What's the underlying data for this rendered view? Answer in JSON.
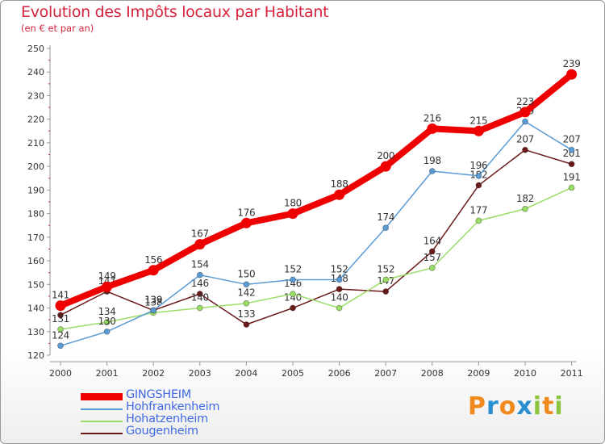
{
  "title": "Evolution des Impôts locaux par Habitant",
  "subtitle": "(en € et par an)",
  "brand": {
    "letters": [
      "P",
      "r",
      "o",
      "x",
      "i",
      "t",
      "i"
    ],
    "colors": [
      "#f08a1c",
      "#2a8fd0",
      "#f08a1c",
      "#2a8fd0",
      "#8cc63f",
      "#f08a1c",
      "#8cc63f"
    ]
  },
  "chart_data": {
    "type": "line",
    "title": "Evolution des Impôts locaux par Habitant",
    "subtitle": "(en € et par an)",
    "xlabel": "",
    "ylabel": "",
    "categories": [
      "2000",
      "2001",
      "2002",
      "2003",
      "2004",
      "2005",
      "2006",
      "2007",
      "2008",
      "2009",
      "2010",
      "2011"
    ],
    "yticks": [
      120,
      130,
      140,
      150,
      160,
      170,
      180,
      190,
      200,
      210,
      220,
      230,
      240,
      250
    ],
    "ylim": [
      120,
      250
    ],
    "grid": false,
    "legend_position": "bottom-left",
    "series": [
      {
        "name": "Gougenheim",
        "color": "#6b1a1a",
        "values": [
          137,
          147,
          139,
          146,
          133,
          140,
          148,
          147,
          164,
          192,
          207,
          201
        ],
        "labels": [
          "",
          "147",
          "139",
          "146",
          "133",
          "140",
          "148",
          "147",
          "164",
          "192",
          "207",
          "201"
        ]
      },
      {
        "name": "Hohatzenheim",
        "color": "#99dd66",
        "values": [
          131,
          134,
          138,
          140,
          142,
          146,
          140,
          152,
          157,
          177,
          182,
          191
        ],
        "labels": [
          "131",
          "134",
          "138",
          "140",
          "142",
          "146",
          "140",
          "152",
          "157",
          "177",
          "182",
          "191"
        ]
      },
      {
        "name": "Hohfrankenheim",
        "color": "#5b9bd5",
        "values": [
          124,
          130,
          139,
          154,
          150,
          152,
          152,
          174,
          198,
          196,
          219,
          207
        ],
        "labels": [
          "124",
          "130",
          "139",
          "154",
          "150",
          "152",
          "152",
          "174",
          "198",
          "196",
          "219",
          "207"
        ]
      },
      {
        "name": "GINGSHEIM",
        "color": "#ee0000",
        "values": [
          141,
          149,
          156,
          167,
          176,
          180,
          188,
          200,
          216,
          215,
          223,
          239
        ],
        "labels": [
          "141",
          "149",
          "156",
          "167",
          "176",
          "180",
          "188",
          "200",
          "216",
          "215",
          "223",
          "239"
        ]
      }
    ],
    "legend": [
      "GINGSHEIM",
      "Hohfrankenheim",
      "Hohatzenheim",
      "Gougenheim"
    ]
  }
}
